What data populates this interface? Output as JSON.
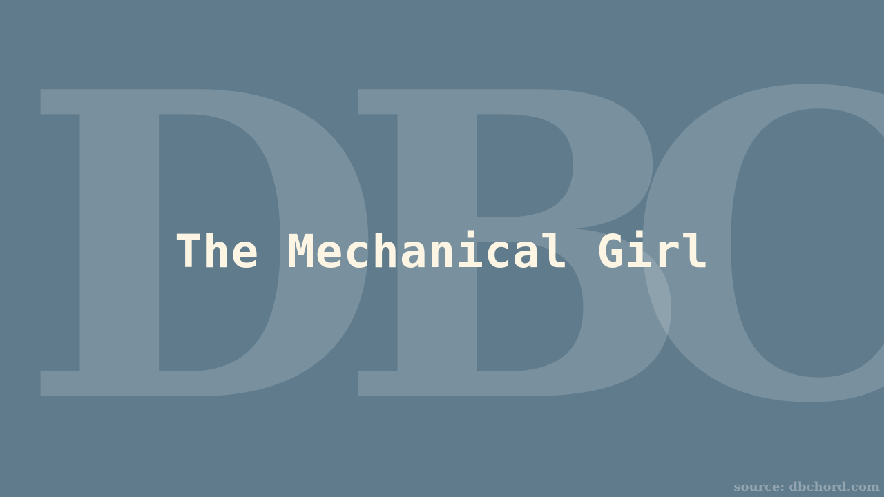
{
  "colors": {
    "background": "#5f7b8c",
    "watermark": "#ffffff",
    "title": "#fdf5e4",
    "source": "#ffffff"
  },
  "watermark": {
    "letters": [
      "D",
      "B",
      "C"
    ]
  },
  "title": "The Mechanical Girl",
  "source_label": "source: dbchord.com"
}
